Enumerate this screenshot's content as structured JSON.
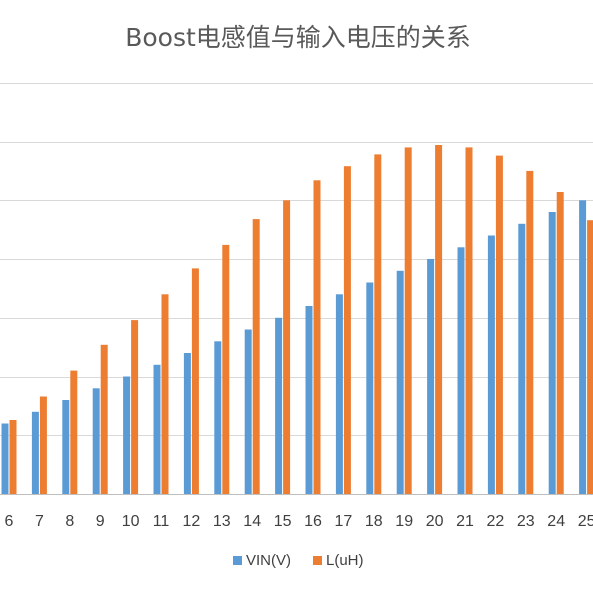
{
  "chart_data": {
    "type": "bar",
    "title": "Boost电感值与输入电压的关系",
    "xlabel": "",
    "ylabel": "",
    "categories": [
      "6",
      "7",
      "8",
      "9",
      "10",
      "11",
      "12",
      "13",
      "14",
      "15",
      "16",
      "17",
      "18",
      "19",
      "20",
      "21",
      "22",
      "23",
      "24",
      "25"
    ],
    "series": [
      {
        "name": "VIN(V)",
        "color": "#5B9BD5",
        "values": [
          6,
          7,
          8,
          9,
          10,
          11,
          12,
          13,
          14,
          15,
          16,
          17,
          18,
          19,
          20,
          21,
          22,
          23,
          24,
          25
        ]
      },
      {
        "name": "L(uH)",
        "color": "#ED7D31",
        "values": [
          6.3,
          8.3,
          10.5,
          12.7,
          14.8,
          17.0,
          19.2,
          21.2,
          23.4,
          25.0,
          26.7,
          27.9,
          28.9,
          29.5,
          29.7,
          29.5,
          28.8,
          27.5,
          25.7,
          23.3
        ]
      }
    ],
    "ylim": [
      0,
      35
    ],
    "grid": true,
    "legend_position": "bottom"
  }
}
